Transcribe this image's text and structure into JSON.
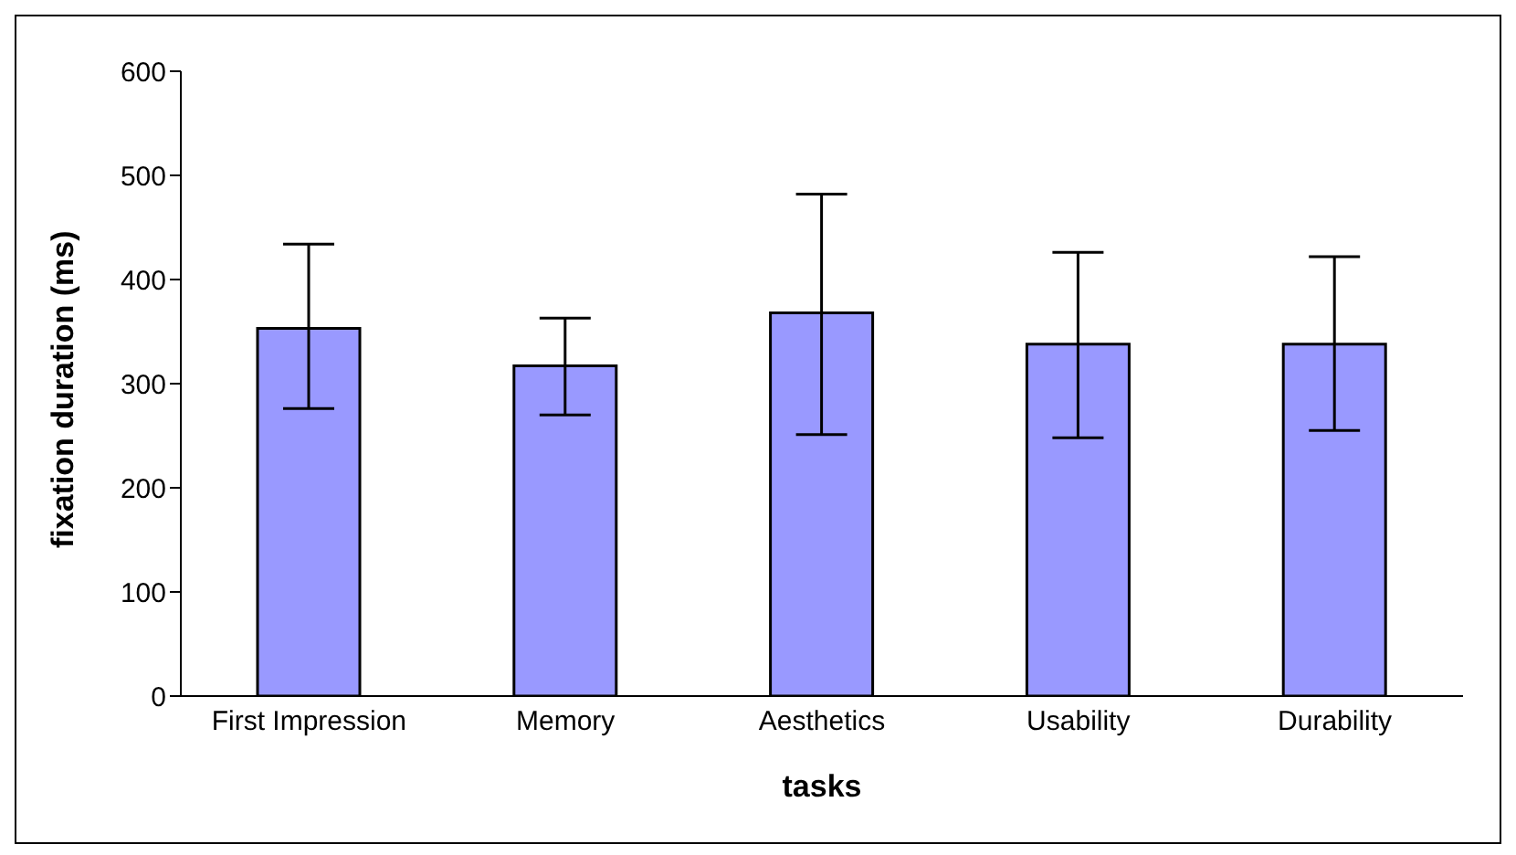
{
  "chart_data": {
    "type": "bar",
    "xlabel": "tasks",
    "ylabel": "fixation duration (ms)",
    "categories": [
      "First Impression",
      "Memory",
      "Aesthetics",
      "Usability",
      "Durability"
    ],
    "values": [
      353,
      317,
      368,
      338,
      338
    ],
    "errors": [
      [
        276,
        434
      ],
      [
        270,
        363
      ],
      [
        251,
        482
      ],
      [
        248,
        426
      ],
      [
        255,
        422
      ]
    ],
    "color": "#9999ff",
    "ylim": [
      0,
      600
    ],
    "yticks": [
      0,
      100,
      200,
      300,
      400,
      500,
      600
    ],
    "grid": false,
    "legend": false
  }
}
